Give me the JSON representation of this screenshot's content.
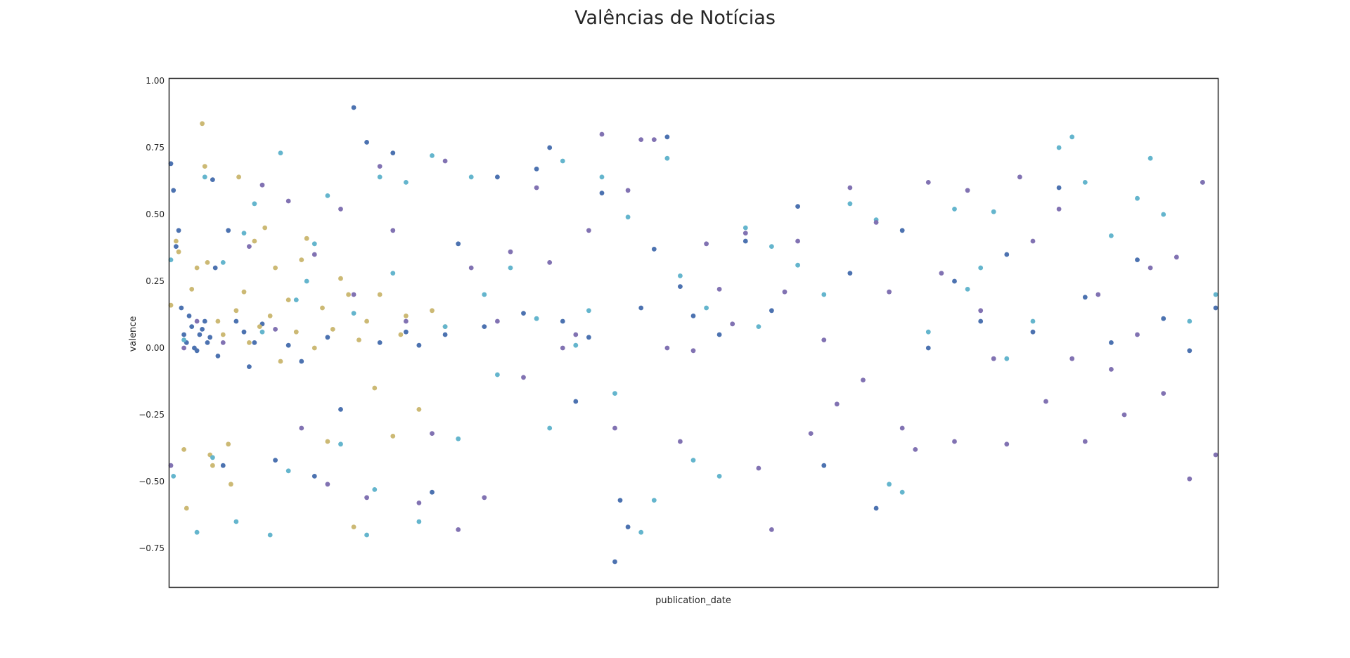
{
  "chart_data": {
    "type": "scatter",
    "title": "Valências de Notícias",
    "xlabel": "publication_date",
    "ylabel": "valence",
    "ylim": [
      -0.9,
      1.0
    ],
    "yticks": [
      1.0,
      0.75,
      0.5,
      0.25,
      0.0,
      -0.25,
      -0.5,
      -0.75
    ],
    "ytick_labels": [
      "1.00",
      "0.75",
      "0.50",
      "0.25",
      "0.00",
      "−0.25",
      "−0.50",
      "−0.75"
    ],
    "x_tick_labels_shown": false,
    "grid": false,
    "legend": "none",
    "series": [
      {
        "color": "#4c72b0",
        "points": [
          [
            0.0,
            0.69
          ],
          [
            0.01,
            0.59
          ],
          [
            0.02,
            0.38
          ],
          [
            0.03,
            0.44
          ],
          [
            0.04,
            0.15
          ],
          [
            0.05,
            0.05
          ],
          [
            0.06,
            0.02
          ],
          [
            0.07,
            0.12
          ],
          [
            0.08,
            0.08
          ],
          [
            0.09,
            0.0
          ],
          [
            0.1,
            -0.01
          ],
          [
            0.11,
            0.05
          ],
          [
            0.12,
            0.07
          ],
          [
            0.13,
            0.1
          ],
          [
            0.14,
            0.02
          ],
          [
            0.15,
            0.04
          ],
          [
            0.16,
            0.63
          ],
          [
            0.17,
            0.3
          ],
          [
            0.18,
            -0.03
          ],
          [
            0.2,
            -0.44
          ],
          [
            0.22,
            0.44
          ],
          [
            0.25,
            0.1
          ],
          [
            0.28,
            0.06
          ],
          [
            0.3,
            -0.07
          ],
          [
            0.32,
            0.02
          ],
          [
            0.35,
            0.09
          ],
          [
            0.4,
            -0.42
          ],
          [
            0.45,
            0.01
          ],
          [
            0.5,
            -0.05
          ],
          [
            0.55,
            -0.48
          ],
          [
            0.6,
            0.04
          ],
          [
            0.65,
            -0.23
          ],
          [
            0.7,
            0.9
          ],
          [
            0.75,
            0.77
          ],
          [
            0.8,
            0.02
          ],
          [
            0.85,
            0.73
          ],
          [
            0.9,
            0.06
          ],
          [
            0.95,
            0.01
          ],
          [
            1.0,
            -0.54
          ],
          [
            1.05,
            0.05
          ],
          [
            1.1,
            0.39
          ],
          [
            1.2,
            0.08
          ],
          [
            1.25,
            0.64
          ],
          [
            1.35,
            0.13
          ],
          [
            1.4,
            0.67
          ],
          [
            1.45,
            0.75
          ],
          [
            1.5,
            0.1
          ],
          [
            1.55,
            -0.2
          ],
          [
            1.6,
            0.04
          ],
          [
            1.65,
            0.58
          ],
          [
            1.7,
            -0.8
          ],
          [
            1.72,
            -0.57
          ],
          [
            1.75,
            -0.67
          ],
          [
            1.8,
            0.15
          ],
          [
            1.85,
            0.37
          ],
          [
            1.9,
            0.79
          ],
          [
            1.95,
            0.23
          ],
          [
            2.0,
            0.12
          ],
          [
            2.1,
            0.05
          ],
          [
            2.2,
            0.4
          ],
          [
            2.3,
            0.14
          ],
          [
            2.4,
            0.53
          ],
          [
            2.5,
            -0.44
          ],
          [
            2.6,
            0.28
          ],
          [
            2.7,
            -0.6
          ],
          [
            2.8,
            0.44
          ],
          [
            2.9,
            0.0
          ],
          [
            3.0,
            0.25
          ],
          [
            3.1,
            0.1
          ],
          [
            3.2,
            0.35
          ],
          [
            3.3,
            0.06
          ],
          [
            3.4,
            0.6
          ],
          [
            3.5,
            0.19
          ],
          [
            3.6,
            0.02
          ],
          [
            3.7,
            0.33
          ],
          [
            3.8,
            0.11
          ],
          [
            3.9,
            -0.01
          ],
          [
            4.0,
            0.15
          ]
        ]
      },
      {
        "color": "#ccb974",
        "points": [
          [
            0.0,
            0.16
          ],
          [
            0.02,
            0.4
          ],
          [
            0.03,
            0.36
          ],
          [
            0.05,
            -0.38
          ],
          [
            0.06,
            -0.6
          ],
          [
            0.08,
            0.22
          ],
          [
            0.1,
            0.3
          ],
          [
            0.12,
            0.84
          ],
          [
            0.13,
            0.68
          ],
          [
            0.14,
            0.32
          ],
          [
            0.15,
            -0.4
          ],
          [
            0.16,
            -0.44
          ],
          [
            0.18,
            0.1
          ],
          [
            0.2,
            0.05
          ],
          [
            0.22,
            -0.36
          ],
          [
            0.23,
            -0.51
          ],
          [
            0.25,
            0.14
          ],
          [
            0.26,
            0.64
          ],
          [
            0.28,
            0.21
          ],
          [
            0.3,
            0.02
          ],
          [
            0.32,
            0.4
          ],
          [
            0.34,
            0.08
          ],
          [
            0.36,
            0.45
          ],
          [
            0.38,
            0.12
          ],
          [
            0.4,
            0.3
          ],
          [
            0.42,
            -0.05
          ],
          [
            0.45,
            0.18
          ],
          [
            0.48,
            0.06
          ],
          [
            0.5,
            0.33
          ],
          [
            0.52,
            0.41
          ],
          [
            0.55,
            0.0
          ],
          [
            0.58,
            0.15
          ],
          [
            0.6,
            -0.35
          ],
          [
            0.62,
            0.07
          ],
          [
            0.65,
            0.26
          ],
          [
            0.68,
            0.2
          ],
          [
            0.7,
            -0.67
          ],
          [
            0.72,
            0.03
          ],
          [
            0.75,
            0.1
          ],
          [
            0.78,
            -0.15
          ],
          [
            0.8,
            0.2
          ],
          [
            0.85,
            -0.33
          ],
          [
            0.88,
            0.05
          ],
          [
            0.9,
            0.12
          ],
          [
            0.95,
            -0.23
          ],
          [
            1.0,
            0.14
          ],
          [
            1.05,
            0.08
          ]
        ]
      },
      {
        "color": "#64b5cd",
        "points": [
          [
            0.0,
            0.33
          ],
          [
            0.01,
            -0.48
          ],
          [
            0.05,
            0.03
          ],
          [
            0.1,
            -0.69
          ],
          [
            0.13,
            0.64
          ],
          [
            0.16,
            -0.41
          ],
          [
            0.2,
            0.32
          ],
          [
            0.25,
            -0.65
          ],
          [
            0.28,
            0.43
          ],
          [
            0.32,
            0.54
          ],
          [
            0.35,
            0.06
          ],
          [
            0.38,
            -0.7
          ],
          [
            0.42,
            0.73
          ],
          [
            0.45,
            -0.46
          ],
          [
            0.48,
            0.18
          ],
          [
            0.52,
            0.25
          ],
          [
            0.55,
            0.39
          ],
          [
            0.6,
            0.57
          ],
          [
            0.65,
            -0.36
          ],
          [
            0.7,
            0.13
          ],
          [
            0.75,
            -0.7
          ],
          [
            0.78,
            -0.53
          ],
          [
            0.8,
            0.64
          ],
          [
            0.85,
            0.28
          ],
          [
            0.9,
            0.62
          ],
          [
            0.95,
            -0.65
          ],
          [
            1.0,
            0.72
          ],
          [
            1.05,
            0.08
          ],
          [
            1.1,
            -0.34
          ],
          [
            1.15,
            0.64
          ],
          [
            1.2,
            0.2
          ],
          [
            1.25,
            -0.1
          ],
          [
            1.3,
            0.3
          ],
          [
            1.4,
            0.11
          ],
          [
            1.45,
            -0.3
          ],
          [
            1.5,
            0.7
          ],
          [
            1.55,
            0.01
          ],
          [
            1.6,
            0.14
          ],
          [
            1.65,
            0.64
          ],
          [
            1.7,
            -0.17
          ],
          [
            1.75,
            0.49
          ],
          [
            1.8,
            -0.69
          ],
          [
            1.85,
            -0.57
          ],
          [
            1.9,
            0.71
          ],
          [
            1.95,
            0.27
          ],
          [
            2.0,
            -0.42
          ],
          [
            2.05,
            0.15
          ],
          [
            2.1,
            -0.48
          ],
          [
            2.2,
            0.45
          ],
          [
            2.25,
            0.08
          ],
          [
            2.3,
            0.38
          ],
          [
            2.4,
            0.31
          ],
          [
            2.5,
            0.2
          ],
          [
            2.6,
            0.54
          ],
          [
            2.7,
            0.48
          ],
          [
            2.75,
            -0.51
          ],
          [
            2.8,
            -0.54
          ],
          [
            2.9,
            0.06
          ],
          [
            3.0,
            0.52
          ],
          [
            3.05,
            0.22
          ],
          [
            3.1,
            0.3
          ],
          [
            3.15,
            0.51
          ],
          [
            3.2,
            -0.04
          ],
          [
            3.3,
            0.1
          ],
          [
            3.4,
            0.75
          ],
          [
            3.45,
            0.79
          ],
          [
            3.5,
            0.62
          ],
          [
            3.6,
            0.42
          ],
          [
            3.7,
            0.56
          ],
          [
            3.75,
            0.71
          ],
          [
            3.8,
            0.5
          ],
          [
            3.9,
            0.1
          ],
          [
            3.95,
            0.62
          ],
          [
            4.0,
            0.2
          ]
        ]
      },
      {
        "color": "#8172b2",
        "points": [
          [
            0.0,
            -0.44
          ],
          [
            0.05,
            0.0
          ],
          [
            0.1,
            0.1
          ],
          [
            0.2,
            0.02
          ],
          [
            0.3,
            0.38
          ],
          [
            0.35,
            0.61
          ],
          [
            0.4,
            0.07
          ],
          [
            0.45,
            0.55
          ],
          [
            0.5,
            -0.3
          ],
          [
            0.55,
            0.35
          ],
          [
            0.6,
            -0.51
          ],
          [
            0.65,
            0.52
          ],
          [
            0.7,
            0.2
          ],
          [
            0.75,
            -0.56
          ],
          [
            0.8,
            0.68
          ],
          [
            0.85,
            0.44
          ],
          [
            0.9,
            0.1
          ],
          [
            0.95,
            -0.58
          ],
          [
            1.0,
            -0.32
          ],
          [
            1.05,
            0.7
          ],
          [
            1.1,
            -0.68
          ],
          [
            1.15,
            0.3
          ],
          [
            1.2,
            -0.56
          ],
          [
            1.25,
            0.1
          ],
          [
            1.3,
            0.36
          ],
          [
            1.35,
            -0.11
          ],
          [
            1.4,
            0.6
          ],
          [
            1.45,
            0.32
          ],
          [
            1.5,
            0.0
          ],
          [
            1.55,
            0.05
          ],
          [
            1.6,
            0.44
          ],
          [
            1.65,
            0.8
          ],
          [
            1.7,
            -0.3
          ],
          [
            1.75,
            0.59
          ],
          [
            1.8,
            0.78
          ],
          [
            1.85,
            0.78
          ],
          [
            1.9,
            0.0
          ],
          [
            1.95,
            -0.35
          ],
          [
            2.0,
            -0.01
          ],
          [
            2.05,
            0.39
          ],
          [
            2.1,
            0.22
          ],
          [
            2.15,
            0.09
          ],
          [
            2.2,
            0.43
          ],
          [
            2.25,
            -0.45
          ],
          [
            2.3,
            -0.68
          ],
          [
            2.35,
            0.21
          ],
          [
            2.4,
            0.4
          ],
          [
            2.45,
            -0.32
          ],
          [
            2.5,
            0.03
          ],
          [
            2.55,
            -0.21
          ],
          [
            2.6,
            0.6
          ],
          [
            2.65,
            -0.12
          ],
          [
            2.7,
            0.47
          ],
          [
            2.75,
            0.21
          ],
          [
            2.8,
            -0.3
          ],
          [
            2.85,
            -0.38
          ],
          [
            2.9,
            0.62
          ],
          [
            2.95,
            0.28
          ],
          [
            3.0,
            -0.35
          ],
          [
            3.05,
            0.59
          ],
          [
            3.1,
            0.14
          ],
          [
            3.15,
            -0.04
          ],
          [
            3.2,
            -0.36
          ],
          [
            3.25,
            0.64
          ],
          [
            3.3,
            0.4
          ],
          [
            3.35,
            -0.2
          ],
          [
            3.4,
            0.52
          ],
          [
            3.45,
            -0.04
          ],
          [
            3.5,
            -0.35
          ],
          [
            3.55,
            0.2
          ],
          [
            3.6,
            -0.08
          ],
          [
            3.65,
            -0.25
          ],
          [
            3.7,
            0.05
          ],
          [
            3.75,
            0.3
          ],
          [
            3.8,
            -0.17
          ],
          [
            3.85,
            0.34
          ],
          [
            3.9,
            -0.49
          ],
          [
            3.95,
            0.62
          ],
          [
            4.0,
            -0.4
          ]
        ]
      }
    ]
  }
}
